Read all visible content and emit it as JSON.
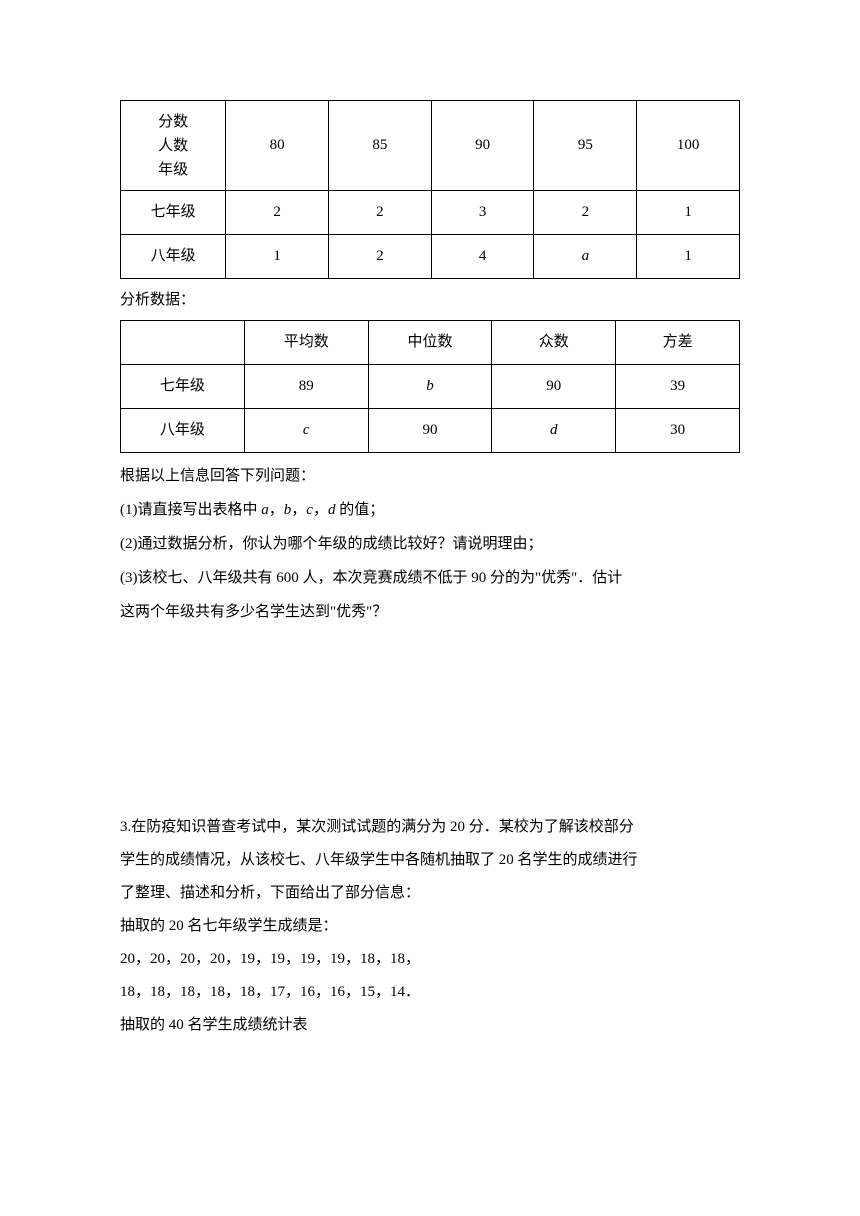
{
  "table1": {
    "header": {
      "col1_line1": "分数",
      "col1_line2": "人数",
      "col1_line3": "年级",
      "cols": [
        "80",
        "85",
        "90",
        "95",
        "100"
      ]
    },
    "rows": [
      {
        "label": "七年级",
        "cells": [
          "2",
          "2",
          "3",
          "2",
          "1"
        ]
      },
      {
        "label": "八年级",
        "cells": [
          "1",
          "2",
          "4",
          "a",
          "1"
        ]
      }
    ],
    "col_widths": [
      "17%",
      "16.6%",
      "16.6%",
      "16.6%",
      "16.6%",
      "16.6%"
    ]
  },
  "label_analysis": "分析数据：",
  "table2": {
    "header": {
      "col1": "",
      "cols": [
        "平均数",
        "中位数",
        "众数",
        "方差"
      ]
    },
    "rows": [
      {
        "label": "七年级",
        "cells": [
          "89",
          "b",
          "90",
          "39"
        ]
      },
      {
        "label": "八年级",
        "cells": [
          "c",
          "90",
          "d",
          "30"
        ]
      }
    ],
    "col_widths": [
      "20%",
      "20%",
      "20%",
      "20%",
      "20%"
    ]
  },
  "body_lines": [
    "根据以上信息回答下列问题：",
    "(1)请直接写出表格中 a，b，c，d 的值；",
    "(2)通过数据分析，你认为哪个年级的成绩比较好？请说明理由；",
    "(3)该校七、八年级共有 600 人，本次竞赛成绩不低于 90 分的为\"优秀\"．估计",
    "这两个年级共有多少名学生达到\"优秀\"？"
  ],
  "problem3": [
    "3.在防疫知识普查考试中，某次测试试题的满分为 20 分．某校为了解该校部分",
    "学生的成绩情况，从该校七、八年级学生中各随机抽取了 20 名学生的成绩进行",
    "了整理、描述和分析，下面给出了部分信息：",
    "抽取的 20 名七年级学生成绩是：",
    "20，20，20，20，19，19，19，19，18，18，",
    "18，18，18，18，18，17，16，16，15，14．",
    "抽取的 40 名学生成绩统计表"
  ],
  "italic_cells": [
    "a",
    "b",
    "c",
    "d"
  ]
}
